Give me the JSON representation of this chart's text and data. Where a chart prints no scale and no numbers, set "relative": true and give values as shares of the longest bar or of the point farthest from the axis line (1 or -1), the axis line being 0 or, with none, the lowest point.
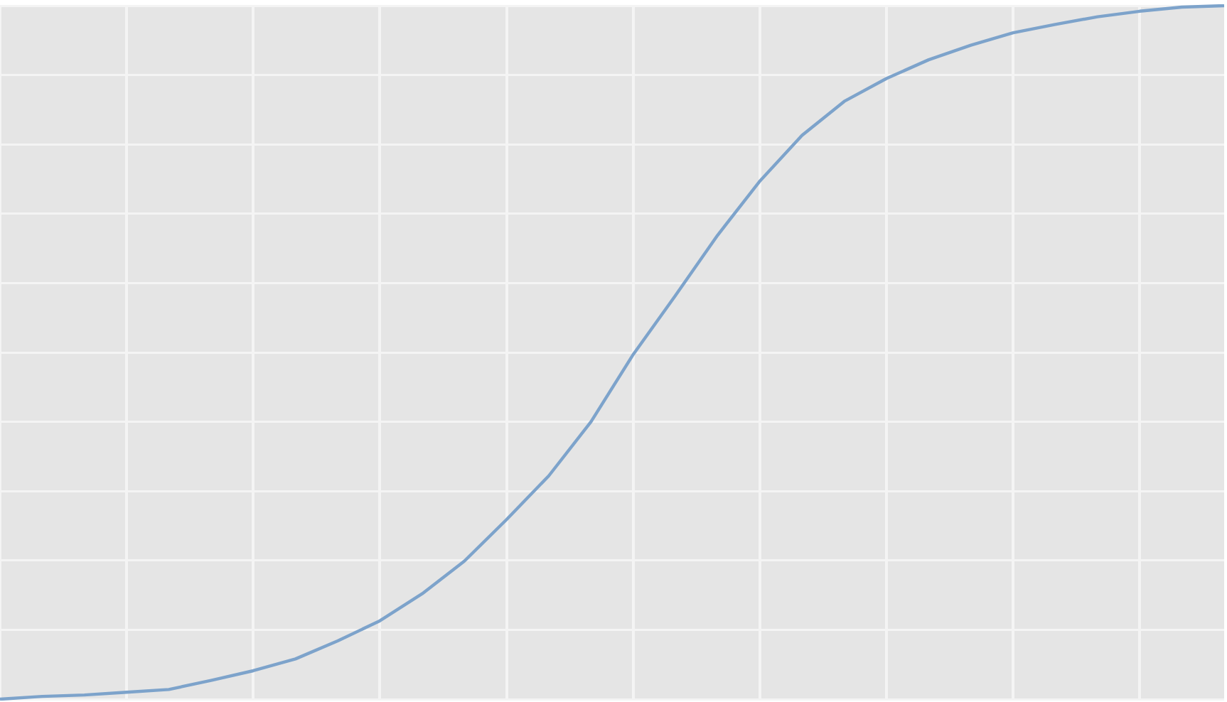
{
  "chart_data": {
    "type": "line",
    "relative": true,
    "grid": true,
    "marker": "none",
    "line_style": "solid",
    "legend": false,
    "categories": [
      null,
      null,
      null,
      null,
      null,
      null,
      null,
      null,
      null,
      null,
      null,
      null,
      null,
      null,
      null,
      null,
      null,
      null,
      null,
      null,
      null,
      null,
      null,
      null,
      null,
      null,
      null,
      null,
      null,
      null
    ],
    "series": [
      {
        "color": "#7da3cb",
        "values": [
          0,
          0.004,
          0.006,
          0.01,
          0.014,
          0.027,
          0.041,
          0.058,
          0.084,
          0.113,
          0.152,
          0.199,
          0.259,
          0.322,
          0.4,
          0.497,
          0.582,
          0.669,
          0.747,
          0.813,
          0.862,
          0.895,
          0.922,
          0.943,
          0.961,
          0.973,
          0.984,
          0.992,
          0.998,
          1
        ]
      }
    ]
  }
}
